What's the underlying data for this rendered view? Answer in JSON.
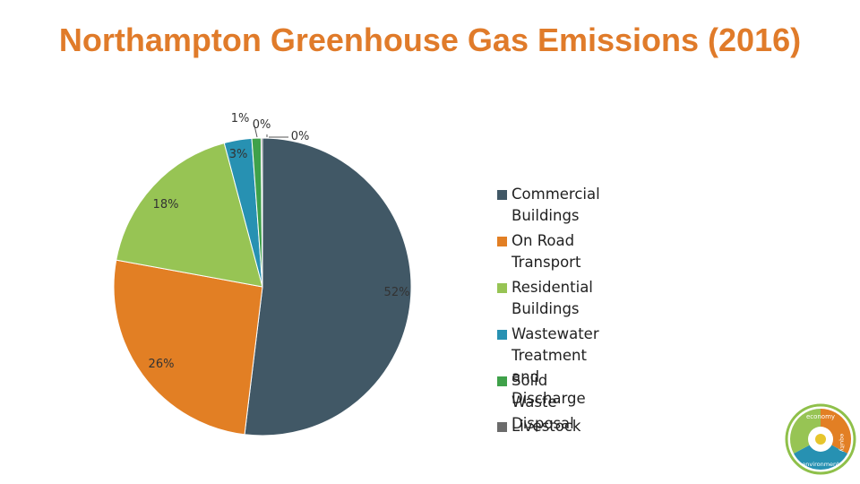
{
  "title": "Northampton Greenhouse Gas Emissions (2016)",
  "chart_data": {
    "type": "pie",
    "title": "Northampton Greenhouse Gas Emissions (2016)",
    "slices": [
      {
        "name": "Commercial Buildings",
        "value": 52,
        "label": "52%",
        "color": "#415866"
      },
      {
        "name": "On Road Transport",
        "value": 26,
        "label": "26%",
        "color": "#e27f24"
      },
      {
        "name": "Residential Buildings",
        "value": 18,
        "label": "18%",
        "color": "#97c454"
      },
      {
        "name": "Wastewater Treatment and Discharge",
        "value": 3,
        "label": "3%",
        "color": "#2791b2"
      },
      {
        "name": "Solid Waste Disposal",
        "value": 1,
        "label": "1%",
        "color": "#3fa14a"
      },
      {
        "name": "Livestock",
        "value": 0,
        "label": "0%",
        "color": "#6b6b6b"
      }
    ],
    "extra_label": "0%",
    "legend_position": "right"
  },
  "legend": [
    {
      "label": "Commercial Buildings",
      "color": "#415866"
    },
    {
      "label": "On Road Transport",
      "color": "#e27f24"
    },
    {
      "label": "Residential Buildings",
      "color": "#97c454"
    },
    {
      "label": "Wastewater Treatment\nand Discharge",
      "color": "#2791b2"
    },
    {
      "label": "Solid Waste Disposal",
      "color": "#3fa14a"
    },
    {
      "label": "Livestock",
      "color": "#6b6b6b"
    }
  ],
  "logo": {
    "text_top": "economy",
    "text_bottom": "environment",
    "text_right": "equity"
  }
}
